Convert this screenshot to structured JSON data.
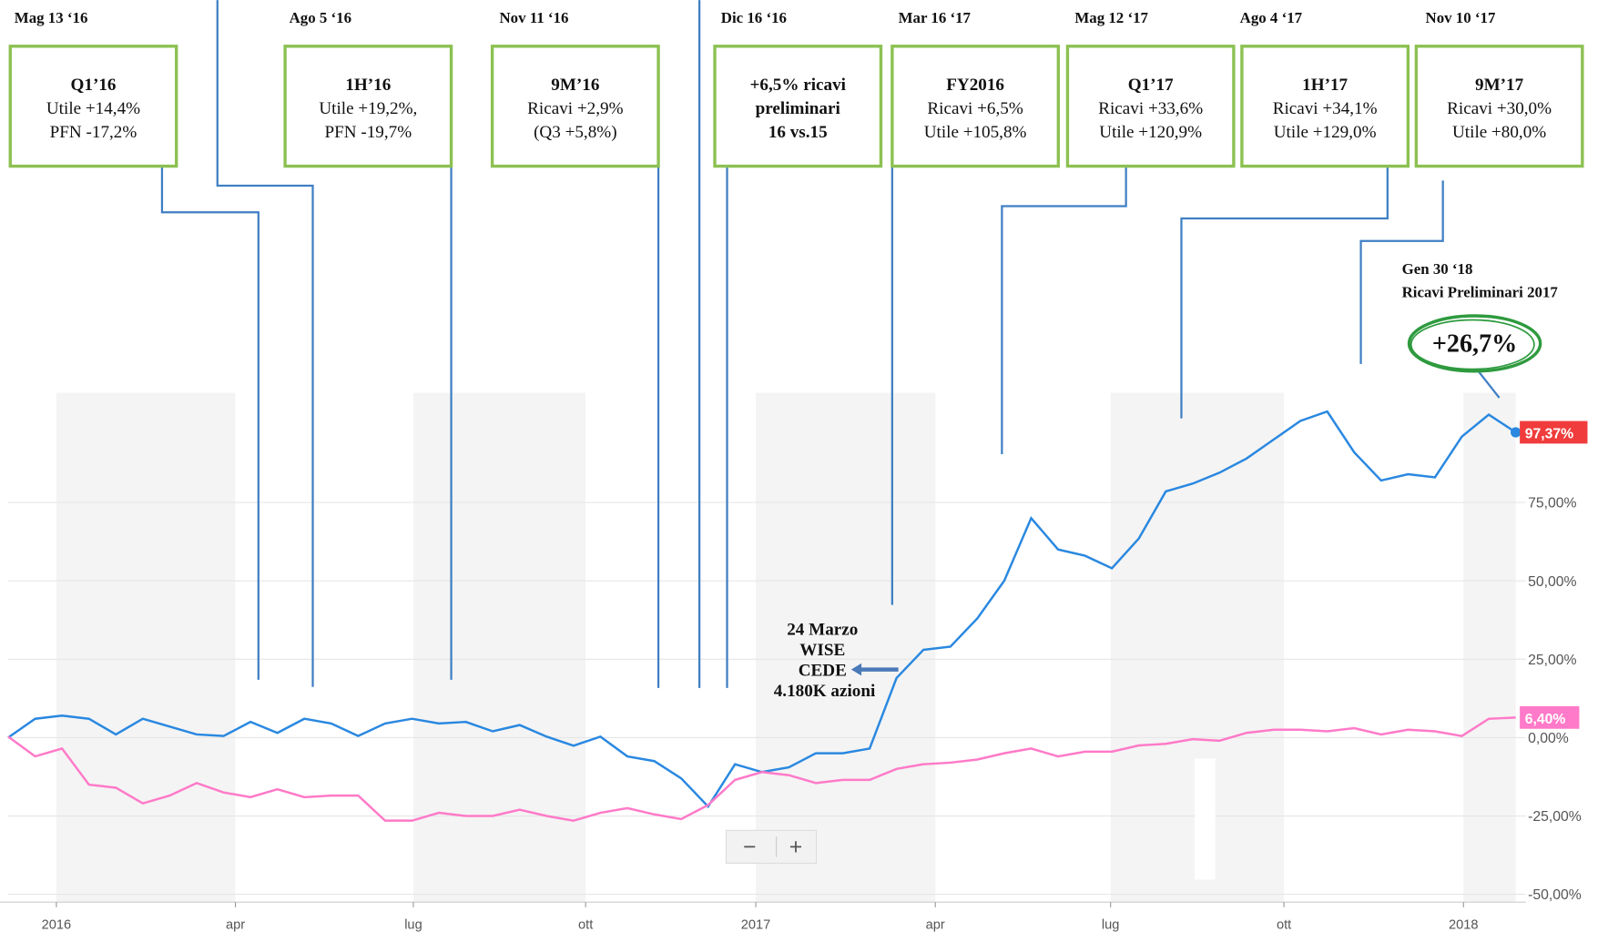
{
  "chart_data": {
    "type": "line",
    "xlim": [
      0,
      56
    ],
    "ylim": [
      -52.5,
      110
    ],
    "yticks": [
      {
        "value": -50,
        "label": "-50,00%"
      },
      {
        "value": -25,
        "label": "-25,00%"
      },
      {
        "value": 0,
        "label": "0,00%"
      },
      {
        "value": 25,
        "label": "25,00%"
      },
      {
        "value": 50,
        "label": "50,00%"
      },
      {
        "value": 75,
        "label": "75,00%"
      }
    ],
    "xticks": [
      {
        "value": 1.79,
        "label": "2016"
      },
      {
        "value": 8.44,
        "label": "apr"
      },
      {
        "value": 15.05,
        "label": "lug"
      },
      {
        "value": 21.45,
        "label": "ott"
      },
      {
        "value": 27.77,
        "label": "2017"
      },
      {
        "value": 34.44,
        "label": "apr"
      },
      {
        "value": 40.95,
        "label": "lug"
      },
      {
        "value": 47.39,
        "label": "ott"
      },
      {
        "value": 54.06,
        "label": "2018"
      }
    ],
    "grid": true,
    "series": [
      {
        "color": "#2a88e0",
        "label_color": "#f03c3c",
        "values": [
          0,
          6,
          7,
          6,
          1,
          6,
          3.5,
          1,
          0.5,
          5,
          1.5,
          6,
          4.5,
          0.5,
          4.5,
          6,
          4.5,
          5,
          2,
          4,
          0.3,
          -2.6,
          0.3,
          -6,
          -7.5,
          -13,
          -22,
          -8.5,
          -11,
          -9.5,
          -5,
          -5,
          -3.5,
          19,
          28,
          29,
          38,
          50,
          70,
          60,
          58,
          54,
          63.5,
          78.5,
          81,
          84.5,
          89,
          95,
          101,
          104,
          91,
          82,
          84,
          83,
          96,
          103,
          97.37
        ],
        "value_labels": [
          null,
          null,
          null,
          null,
          null,
          null,
          null,
          null,
          null,
          null,
          null,
          null,
          null,
          null,
          null,
          null,
          null,
          null,
          null,
          null,
          null,
          null,
          null,
          null,
          null,
          null,
          null,
          null,
          null,
          null,
          null,
          null,
          null,
          null,
          null,
          null,
          null,
          null,
          null,
          null,
          null,
          null,
          null,
          null,
          null,
          null,
          null,
          null,
          null,
          null,
          null,
          null,
          null,
          null,
          null,
          null,
          "97,37%"
        ]
      },
      {
        "color": "#ff7ac8",
        "label_color": "#ff7ac8",
        "values": [
          0.3,
          -6,
          -3.5,
          -15,
          -16,
          -21,
          -18.5,
          -14.5,
          -17.5,
          -19,
          -16.5,
          -19,
          -18.5,
          -18.5,
          -26.5,
          -26.5,
          -24,
          -25,
          -25,
          -23,
          -25,
          -26.5,
          -24,
          -22.5,
          -24.5,
          -26,
          -21.5,
          -13.5,
          -11,
          -12,
          -14.5,
          -13.5,
          -13.5,
          -10,
          -8.5,
          -8,
          -7,
          -5,
          -3.5,
          -6,
          -4.5,
          -4.5,
          -2.5,
          -2,
          -0.5,
          -1,
          1.5,
          2.5,
          2.5,
          2,
          3,
          1,
          2.5,
          2,
          0.5,
          6,
          6.4
        ],
        "value_labels": [
          null,
          null,
          null,
          null,
          null,
          null,
          null,
          null,
          null,
          null,
          null,
          null,
          null,
          null,
          null,
          null,
          null,
          null,
          null,
          null,
          null,
          null,
          null,
          null,
          null,
          null,
          null,
          null,
          null,
          null,
          null,
          null,
          null,
          null,
          null,
          null,
          null,
          null,
          null,
          null,
          null,
          null,
          null,
          null,
          null,
          null,
          null,
          null,
          null,
          null,
          null,
          null,
          null,
          null,
          null,
          null,
          "6,40%"
        ]
      }
    ],
    "annotations": [
      {
        "date": "Mag 13 ‘16",
        "lines": [
          "Q1’16",
          "Utile +14,4%",
          "PFN -17,2%"
        ]
      },
      {
        "date": "Ago 5 ‘16",
        "lines": [
          "1H’16",
          "Utile +19,2%,",
          "PFN -19,7%"
        ]
      },
      {
        "date": "Nov 11 ‘16",
        "lines": [
          "9M’16",
          "Ricavi +2,9%",
          "(Q3 +5,8%)"
        ]
      },
      {
        "date": "Dic 16 ‘16",
        "lines": [
          "+6,5% ricavi",
          "preliminari",
          "16 vs.15"
        ]
      },
      {
        "date": "Mar 16 ‘17",
        "lines": [
          "FY2016",
          "Ricavi +6,5%",
          "Utile +105,8%"
        ]
      },
      {
        "date": "Mag 12 ‘17",
        "lines": [
          "Q1’17",
          "Ricavi +33,6%",
          "Utile +120,9%"
        ]
      },
      {
        "date": "Ago 4 ‘17",
        "lines": [
          "1H’17",
          "Ricavi +34,1%",
          "Utile +129,0%"
        ]
      },
      {
        "date": "Nov 10 ‘17",
        "lines": [
          "9M’17",
          "Ricavi +30,0%",
          "Utile +80,0%"
        ]
      }
    ],
    "highlight": {
      "date": "Gen 30 ‘18",
      "text": "Ricavi Preliminari 2017",
      "value": "+26,7%"
    },
    "note": [
      "24 Marzo",
      "WISE",
      "CEDE",
      "4.180K azioni"
    ],
    "zoom_buttons": [
      "−",
      "+"
    ]
  }
}
